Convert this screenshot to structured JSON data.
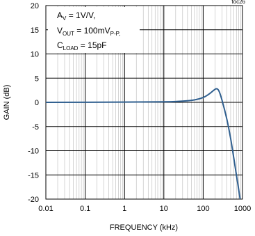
{
  "chart_data": {
    "type": "line",
    "tag": "toc26",
    "xlabel": "FREQUENCY (kHz)",
    "ylabel": "GAIN (dB)",
    "x_scale": "log",
    "xlim": [
      0.01,
      1000
    ],
    "ylim": [
      -20,
      20
    ],
    "x_ticks": [
      "0.01",
      "0.1",
      "1",
      "10",
      "100",
      "1000"
    ],
    "y_ticks": [
      "20",
      "15",
      "10",
      "5",
      "0",
      "-5",
      "-10",
      "-15",
      "-20"
    ],
    "grid": true,
    "annotations": [
      {
        "main": "A",
        "sub": "V",
        "rest": " = 1V/V,"
      },
      {
        "main": "V",
        "sub": "OUT",
        "rest": " = 100mV",
        "sub2": "P-P,"
      },
      {
        "main": "C",
        "sub": "LOAD",
        "rest": " = 15pF"
      }
    ],
    "series": [
      {
        "color": "#2f5f8f",
        "points": [
          [
            0.01,
            0.0
          ],
          [
            1,
            0.05
          ],
          [
            10,
            0.1
          ],
          [
            30,
            0.25
          ],
          [
            60,
            0.5
          ],
          [
            100,
            1.0
          ],
          [
            140,
            1.7
          ],
          [
            180,
            2.4
          ],
          [
            215,
            2.8
          ],
          [
            250,
            2.4
          ],
          [
            300,
            0.5
          ],
          [
            400,
            -3.5
          ],
          [
            500,
            -7.5
          ],
          [
            600,
            -11.5
          ],
          [
            700,
            -15.0
          ],
          [
            800,
            -18.0
          ],
          [
            870,
            -20.0
          ]
        ]
      }
    ]
  }
}
